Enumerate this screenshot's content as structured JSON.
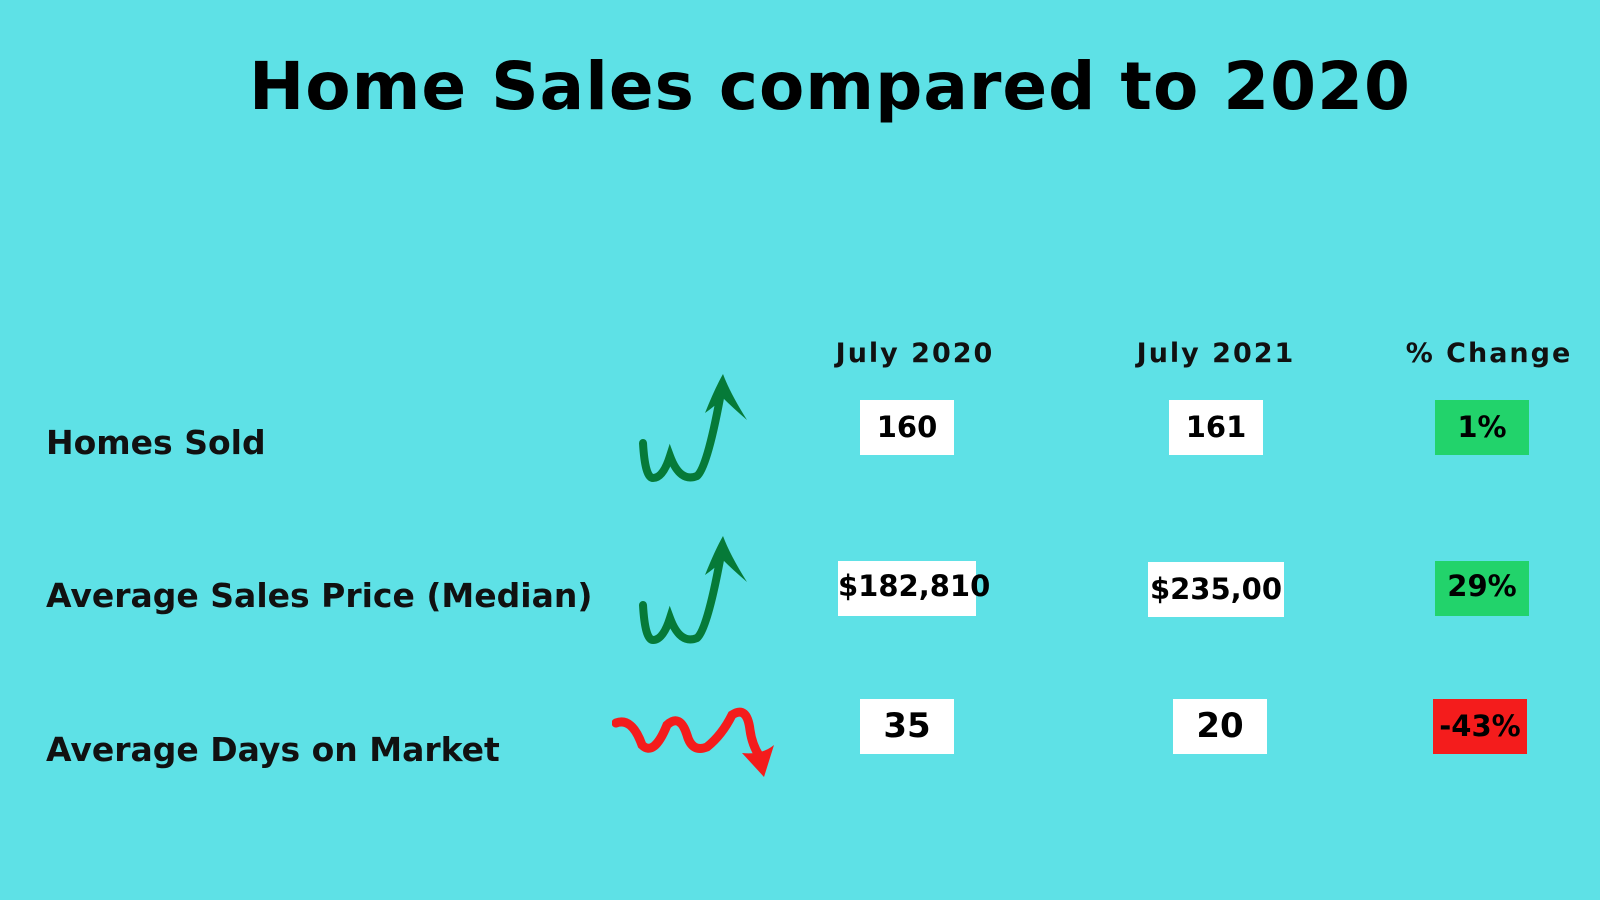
{
  "header": {
    "title": "Home Sales compared to 2020"
  },
  "table": {
    "columns": [
      "July 2020",
      "July 2021",
      "% Change"
    ],
    "rows": [
      [
        "Homes Sold",
        "160",
        "161",
        "1%"
      ],
      [
        "Average Sales Price (Median)",
        "$182,810",
        "$235,00",
        "29%"
      ],
      [
        "Average Days on Market",
        "35",
        "20",
        "-43%"
      ]
    ]
  }
}
